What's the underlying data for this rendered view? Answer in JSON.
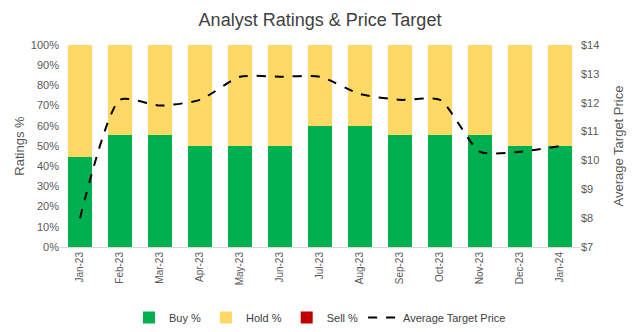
{
  "chart_data": {
    "type": "bar",
    "title": "Analyst Ratings & Price Target",
    "y_label": "Ratings %",
    "y2_label": "Average Target Price",
    "categories": [
      "Jan-23",
      "Feb-23",
      "Mar-23",
      "Apr-23",
      "May-23",
      "Jun-23",
      "Jul-23",
      "Aug-23",
      "Sep-23",
      "Oct-23",
      "Nov-23",
      "Dec-23",
      "Jan-24"
    ],
    "stacked": true,
    "grid": false,
    "legend": "bottom",
    "series": [
      {
        "name": "Buy %",
        "type": "bar",
        "color": "#00b050",
        "values": [
          44.4,
          55.6,
          55.6,
          50,
          50,
          50,
          60,
          60,
          55.6,
          55.6,
          55.6,
          50,
          50
        ]
      },
      {
        "name": "Hold %",
        "type": "bar",
        "color": "#ffd966",
        "values": [
          55.6,
          44.4,
          44.4,
          50,
          50,
          50,
          40,
          40,
          44.4,
          44.4,
          44.4,
          50,
          50
        ]
      },
      {
        "name": "Sell %",
        "type": "bar",
        "color": "#c00000",
        "values": [
          0,
          0,
          0,
          0,
          0,
          0,
          0,
          0,
          0,
          0,
          0,
          0,
          0
        ]
      },
      {
        "name": "Average Target Price",
        "type": "line",
        "axis": "y2",
        "color": "#000000",
        "line_style": "dash",
        "values": [
          8.0,
          12.1,
          11.9,
          12.1,
          12.9,
          12.9,
          12.9,
          12.3,
          12.1,
          12.1,
          10.3,
          10.3,
          10.5
        ]
      }
    ],
    "ylim": [
      0,
      100
    ],
    "yticks": [
      {
        "value": 0,
        "label": "0%"
      },
      {
        "value": 10,
        "label": "10%"
      },
      {
        "value": 20,
        "label": "20%"
      },
      {
        "value": 30,
        "label": "30%"
      },
      {
        "value": 40,
        "label": "40%"
      },
      {
        "value": 50,
        "label": "50%"
      },
      {
        "value": 60,
        "label": "60%"
      },
      {
        "value": 70,
        "label": "70%"
      },
      {
        "value": 80,
        "label": "80%"
      },
      {
        "value": 90,
        "label": "90%"
      },
      {
        "value": 100,
        "label": "100%"
      }
    ],
    "y2lim": [
      7,
      14
    ],
    "y2ticks": [
      {
        "value": 7,
        "label": "$7"
      },
      {
        "value": 8,
        "label": "$8"
      },
      {
        "value": 9,
        "label": "$9"
      },
      {
        "value": 10,
        "label": "$10"
      },
      {
        "value": 11,
        "label": "$11"
      },
      {
        "value": 12,
        "label": "$12"
      },
      {
        "value": 13,
        "label": "$13"
      },
      {
        "value": 14,
        "label": "$14"
      }
    ]
  }
}
